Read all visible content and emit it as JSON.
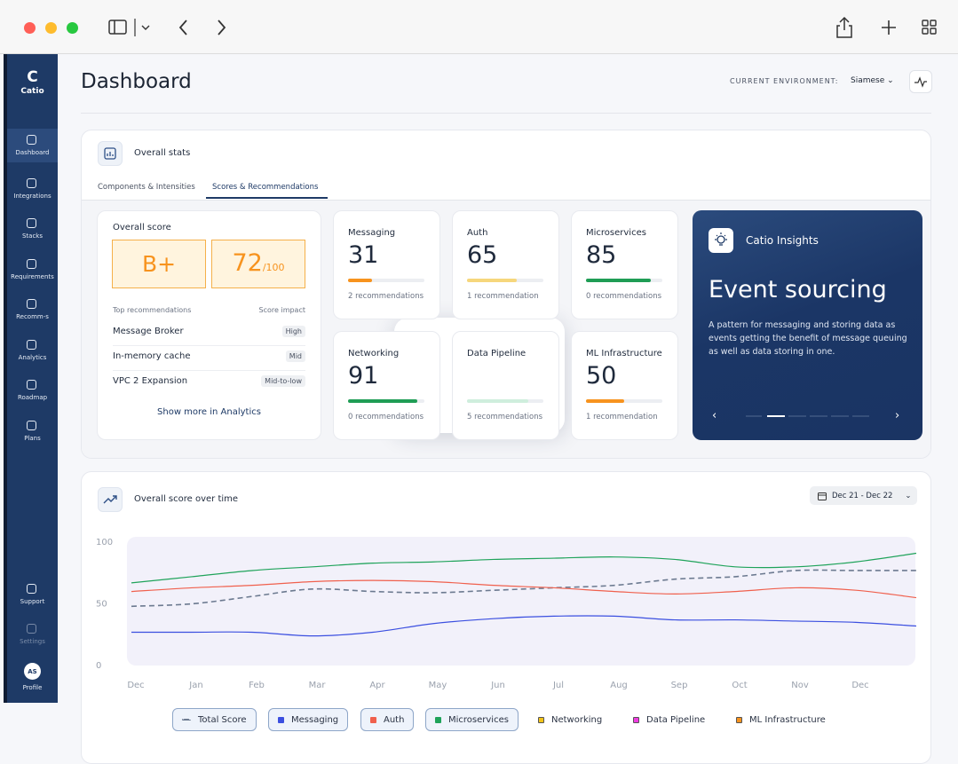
{
  "sidebar": {
    "logo": "Catio",
    "items": [
      {
        "label": "Dashboard",
        "active": true
      },
      {
        "label": "Integrations"
      },
      {
        "label": "Stacks"
      },
      {
        "label": "Requirements"
      },
      {
        "label": "Recomm-s"
      },
      {
        "label": "Analytics"
      },
      {
        "label": "Roadmap"
      },
      {
        "label": "Plans"
      },
      {
        "label": "Support"
      },
      {
        "label": "Settings",
        "disabled": true
      }
    ],
    "profile": {
      "initials": "AS",
      "label": "Profile"
    }
  },
  "header": {
    "title": "Dashboard",
    "env_label": "CURRENT ENVIRONMENT:",
    "env_value": "Siamese"
  },
  "stats": {
    "title": "Overall stats",
    "tabs": [
      {
        "label": "Components & Intensities"
      },
      {
        "label": "Scores & Recommendations",
        "active": true
      }
    ],
    "overall": {
      "label": "Overall score",
      "grade": "B+",
      "score": "72",
      "score_suffix": "/100",
      "col_left": "Top recommendations",
      "col_right": "Score impact",
      "rows": [
        [
          "Message Broker",
          "High"
        ],
        [
          "In-memory cache",
          "Mid"
        ],
        [
          "VPC 2 Expansion",
          "Mid-to-low"
        ]
      ],
      "link": "Show more in Analytics"
    },
    "cards": [
      {
        "name": "Messaging",
        "value": 31,
        "recs": "2 recommendations",
        "color": "#f7931e"
      },
      {
        "name": "Auth",
        "value": 65,
        "recs": "1 recommendation",
        "color": "#f6d77c"
      },
      {
        "name": "Microservices",
        "value": 85,
        "recs": "0 recommendations",
        "color": "#1f9d55"
      },
      {
        "name": "Networking",
        "value": 91,
        "recs": "0 recommendations",
        "color": "#1f9d55"
      },
      {
        "name": "Data Pipeline",
        "recs": "5 recommendations",
        "color": "#cfeedd"
      },
      {
        "name": "ML Infrastructure",
        "value": 50,
        "recs": "1 recommendation",
        "color": "#f7931e"
      }
    ],
    "insights": {
      "title": "Catio Insights",
      "headline": "Event sourcing",
      "text": "A pattern for messaging and storing data as events getting the benefit of message queuing as well as data storing in one."
    }
  },
  "chart_data": {
    "type": "line",
    "title": "Overall score over time",
    "date_range": "Dec 21 - Dec 22",
    "categories": [
      "Dec",
      "Jan",
      "Feb",
      "Mar",
      "Apr",
      "May",
      "Jun",
      "Jul",
      "Aug",
      "Sep",
      "Oct",
      "Nov",
      "Dec",
      null
    ],
    "ylim": [
      0,
      100
    ],
    "yticks": [
      0,
      50,
      100
    ],
    "series": [
      {
        "name": "Total Score",
        "color": "#6c7a90",
        "dashed": true,
        "visible": true,
        "values": [
          48,
          50,
          56,
          62,
          60,
          59,
          61,
          63,
          65,
          70,
          72,
          77,
          77,
          77
        ]
      },
      {
        "name": "Messaging",
        "color": "#3b4fe0",
        "visible": true,
        "values": [
          27,
          27,
          27,
          24,
          27,
          34,
          38,
          40,
          40,
          37,
          37,
          36,
          35,
          32
        ]
      },
      {
        "name": "Auth",
        "color": "#f0604d",
        "visible": true,
        "values": [
          60,
          63,
          65,
          68,
          69,
          68,
          65,
          63,
          60,
          58,
          60,
          63,
          61,
          55
        ]
      },
      {
        "name": "Microservices",
        "color": "#1fa35a",
        "visible": true,
        "values": [
          67,
          72,
          77,
          80,
          83,
          84,
          86,
          87,
          88,
          86,
          80,
          80,
          84,
          91
        ]
      },
      {
        "name": "Networking",
        "color": "#f2c318",
        "visible": false
      },
      {
        "name": "Data Pipeline",
        "color": "#f03ce0",
        "visible": false
      },
      {
        "name": "ML Infrastructure",
        "color": "#f7931e",
        "visible": false
      }
    ]
  }
}
